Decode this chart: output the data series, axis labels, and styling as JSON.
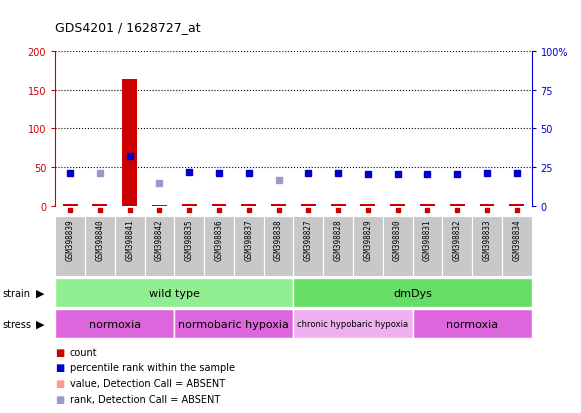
{
  "title": "GDS4201 / 1628727_at",
  "samples": [
    "GSM398839",
    "GSM398840",
    "GSM398841",
    "GSM398842",
    "GSM398835",
    "GSM398836",
    "GSM398837",
    "GSM398838",
    "GSM398827",
    "GSM398828",
    "GSM398829",
    "GSM398830",
    "GSM398831",
    "GSM398832",
    "GSM398833",
    "GSM398834"
  ],
  "count_values": [
    2,
    2,
    163,
    1,
    2,
    2,
    2,
    2,
    2,
    2,
    2,
    2,
    2,
    2,
    2,
    2
  ],
  "rank_values": [
    43,
    43,
    65,
    29,
    44,
    43,
    43,
    34,
    43,
    43,
    41,
    41,
    41,
    41,
    43,
    42
  ],
  "rank_absent": [
    false,
    true,
    false,
    true,
    false,
    false,
    false,
    true,
    false,
    false,
    false,
    false,
    false,
    false,
    false,
    false
  ],
  "strain_groups": [
    {
      "label": "wild type",
      "start": 0,
      "end": 8,
      "color": "#90EE90"
    },
    {
      "label": "dmDys",
      "start": 8,
      "end": 16,
      "color": "#66DD66"
    }
  ],
  "stress_groups": [
    {
      "label": "normoxia",
      "start": 0,
      "end": 4,
      "color": "#DD66DD"
    },
    {
      "label": "normobaric hypoxia",
      "start": 4,
      "end": 8,
      "color": "#DD66DD"
    },
    {
      "label": "chronic hypobaric hypoxia",
      "start": 8,
      "end": 12,
      "color": "#EEB0EE"
    },
    {
      "label": "normoxia",
      "start": 12,
      "end": 16,
      "color": "#DD66DD"
    }
  ],
  "ylim_left": [
    0,
    200
  ],
  "ylim_right": [
    0,
    100
  ],
  "yticks_left": [
    0,
    50,
    100,
    150,
    200
  ],
  "yticks_right": [
    0,
    25,
    50,
    75,
    100
  ],
  "ytick_labels_left": [
    "0",
    "50",
    "100",
    "150",
    "200"
  ],
  "ytick_labels_right": [
    "0",
    "25",
    "50",
    "75",
    "100%"
  ],
  "left_axis_color": "#CC0000",
  "right_axis_color": "#0000CC",
  "bar_color": "#CC0000",
  "rank_color": "#0000CC",
  "rank_absent_color": "#9999CC",
  "count_marker_color": "#CC0000",
  "count_absent_marker_color": "#FF9999",
  "background_color": "#FFFFFF"
}
